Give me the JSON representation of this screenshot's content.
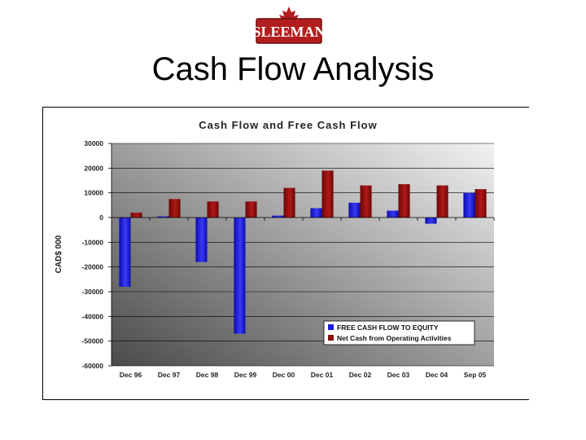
{
  "logo": {
    "text": "SLEEMAN"
  },
  "slide": {
    "title": "Cash Flow Analysis"
  },
  "colors": {
    "series1": "#1a1adc",
    "series2": "#8b0e0e",
    "plot_bg_light": "#f2f2f2",
    "plot_bg_dark": "#4a4a4a"
  },
  "chart_data": {
    "type": "bar",
    "title": "Cash Flow and Free Cash Flow",
    "xlabel": "",
    "ylabel": "CAD$ 000",
    "categories": [
      "Dec 96",
      "Dec 97",
      "Dec 98",
      "Dec 99",
      "Dec 00",
      "Dec 01",
      "Dec 02",
      "Dec 03",
      "Dec 04",
      "Sep 05"
    ],
    "series": [
      {
        "name": "FREE CASH FLOW TO EQUITY",
        "values": [
          -28000,
          500,
          -18000,
          -47000,
          800,
          3800,
          6000,
          2800,
          -2500,
          10000
        ]
      },
      {
        "name": "Net Cash from Operating Activities",
        "values": [
          2000,
          7500,
          6500,
          6500,
          12000,
          19000,
          13000,
          13500,
          13000,
          11500
        ]
      }
    ],
    "ylim": [
      -60000,
      30000
    ],
    "yticks": [
      30000,
      20000,
      10000,
      0,
      -10000,
      -20000,
      -30000,
      -40000,
      -50000,
      -60000
    ],
    "grid": true,
    "legend_position": "bottom-right"
  }
}
